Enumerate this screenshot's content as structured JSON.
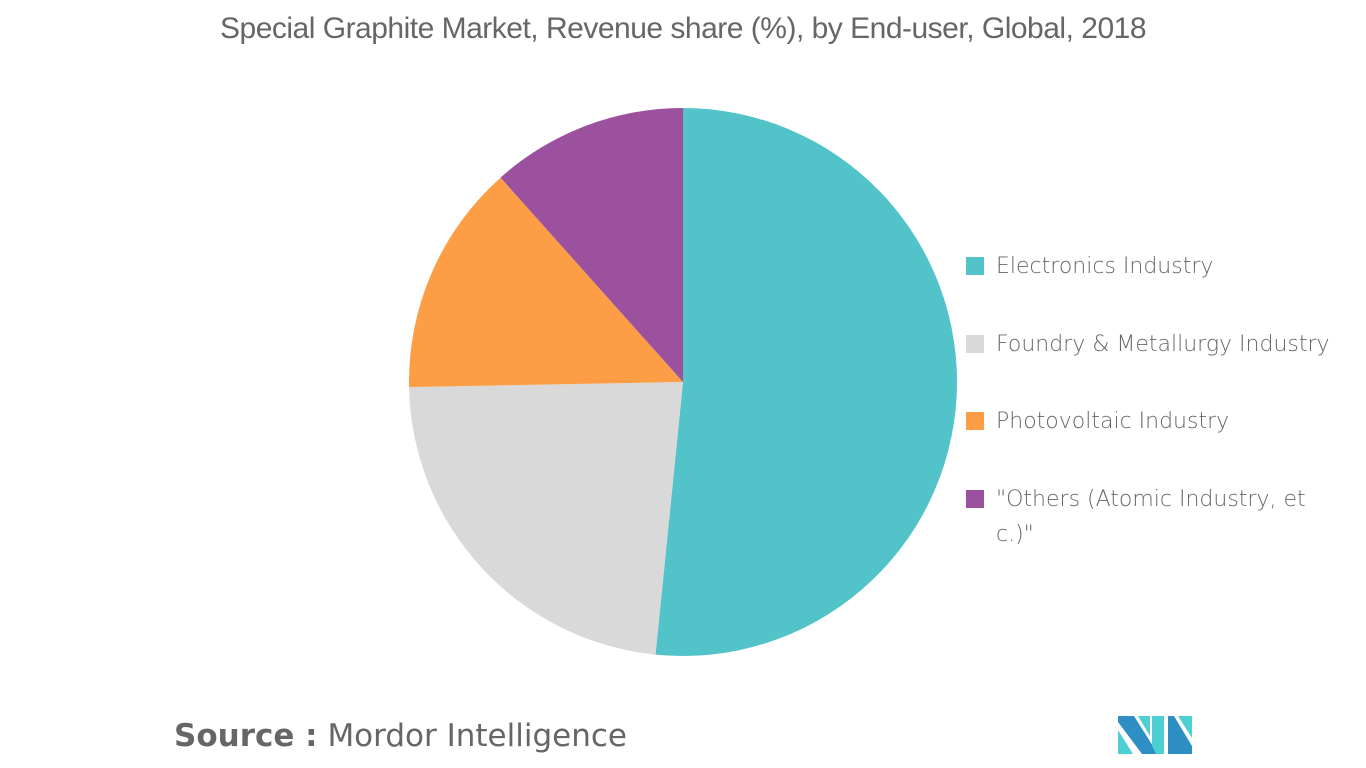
{
  "header": {
    "title": "Special Graphite Market, Revenue share (%), by End-user, Global, 2018"
  },
  "legend": {
    "items": [
      {
        "label": "Electronics Industry",
        "color": "#52c3c9"
      },
      {
        "label": "Foundry & Metallurgy Industry",
        "color": "#d9d9d9"
      },
      {
        "label": "Photovoltaic Industry",
        "color": "#fd9e47"
      },
      {
        "label": "\"Others (Atomic Industry, etc.)\"",
        "color": "#9c519e"
      }
    ]
  },
  "footer": {
    "source_label": "Source :",
    "source_value": "Mordor Intelligence",
    "logo_icon": "mordor-intelligence-logo-icon"
  },
  "chart_data": {
    "type": "pie",
    "title": "Special Graphite Market, Revenue share (%), by End-user, Global, 2018",
    "categories": [
      "Electronics Industry",
      "Foundry & Metallurgy Industry",
      "Photovoltaic Industry",
      "\"Others (Atomic Industry, etc.)\""
    ],
    "values": [
      51.6,
      23.1,
      13.7,
      11.6
    ],
    "colors": [
      "#52c3c9",
      "#d9d9d9",
      "#fd9e47",
      "#9c519e"
    ],
    "start_angle_deg": 0,
    "direction": "clockwise",
    "legend_position": "right",
    "data_labels": false
  }
}
